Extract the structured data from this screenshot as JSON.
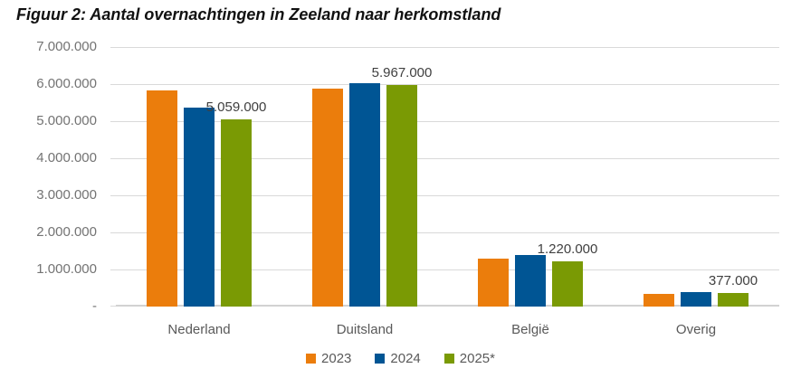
{
  "title": "Figuur 2: Aantal overnachtingen in Zeeland naar herkomstland",
  "chart_data": {
    "type": "bar",
    "title": "Figuur 2: Aantal overnachtingen in Zeeland naar herkomstland",
    "categories": [
      "Nederland",
      "Duitsland",
      "België",
      "Overig"
    ],
    "series": [
      {
        "name": "2023",
        "color": "#EB7D0C",
        "values": [
          5830000,
          5880000,
          1290000,
          345000
        ]
      },
      {
        "name": "2024",
        "color": "#005594",
        "values": [
          5370000,
          6020000,
          1390000,
          400000
        ]
      },
      {
        "name": "2025*",
        "color": "#7A9A04",
        "values": [
          5059000,
          5967000,
          1220000,
          377000
        ],
        "data_labels": [
          "5.059.000",
          "5.967.000",
          "1.220.000",
          "377.000"
        ]
      }
    ],
    "ylim": [
      0,
      7000000
    ],
    "y_tick_step": 1000000,
    "y_tick_labels": [
      "-",
      "1.000.000",
      "2.000.000",
      "3.000.000",
      "4.000.000",
      "5.000.000",
      "6.000.000",
      "7.000.000"
    ],
    "grid": true,
    "legend_position": "bottom",
    "xlabel": "",
    "ylabel": "",
    "colors": {
      "grid": "#D9D9D9",
      "axis_text": "#737373",
      "category_text": "#595959",
      "data_label_text": "#404040",
      "title_text": "#111111"
    }
  },
  "legend": {
    "items": [
      {
        "label": "2023"
      },
      {
        "label": "2024"
      },
      {
        "label": "2025*"
      }
    ]
  }
}
